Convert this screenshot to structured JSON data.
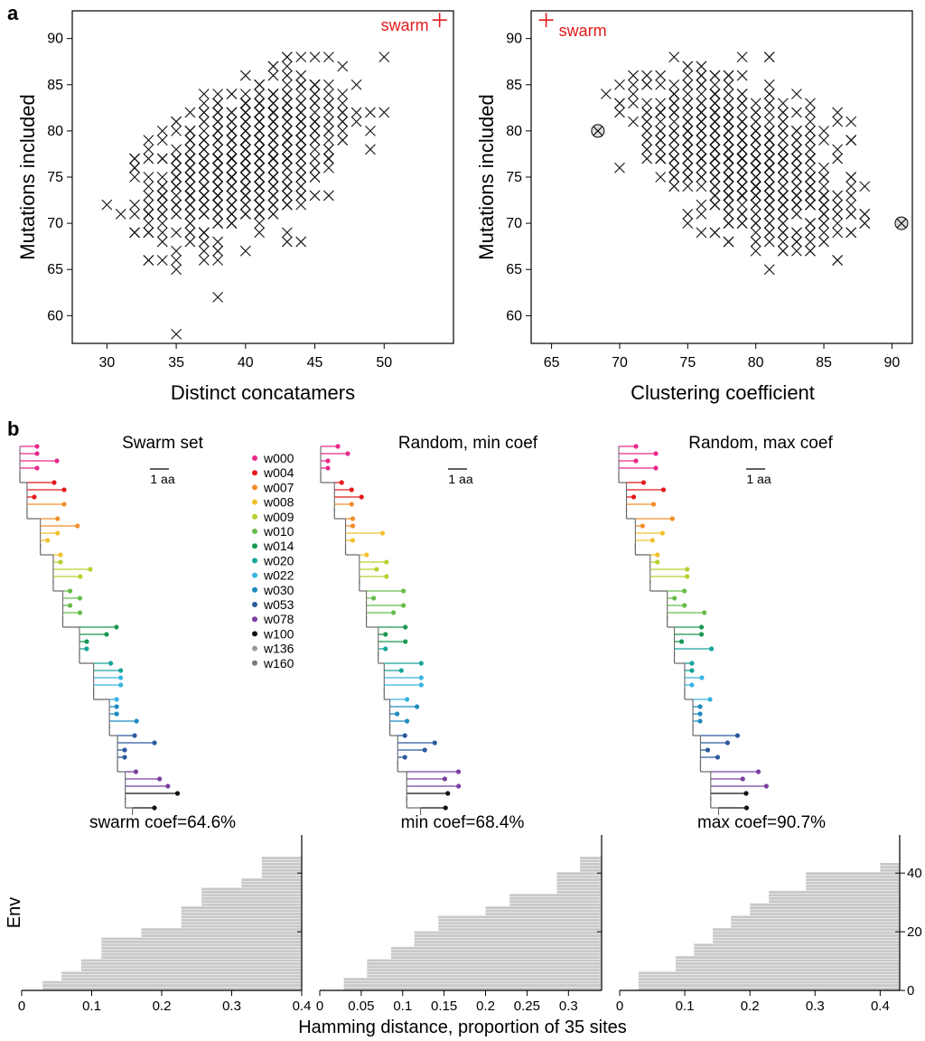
{
  "panel_labels": {
    "a": "a",
    "b": "b"
  },
  "colors": {
    "marker": "#111111",
    "highlight": "#e41a1c",
    "hist": "#c8c8c8",
    "axis": "#000000"
  },
  "chart_data": [
    {
      "id": "scatter-concatamers",
      "type": "scatter",
      "xlabel": "Distinct concatamers",
      "ylabel": "Mutations included",
      "xlim": [
        27.5,
        55
      ],
      "ylim": [
        57,
        93
      ],
      "xticks": [
        30,
        35,
        40,
        45,
        50
      ],
      "yticks": [
        60,
        65,
        70,
        75,
        80,
        85,
        90
      ],
      "highlight": {
        "label": "swarm",
        "x": 54,
        "y": 92
      },
      "cloud": {
        "center": [
          40,
          77
        ],
        "sd": [
          3.2,
          4.2
        ],
        "rho": 0.45,
        "n": 1000
      }
    },
    {
      "id": "scatter-clustering",
      "type": "scatter",
      "xlabel": "Clustering coefficient",
      "ylabel": "Mutations included",
      "xlim": [
        63.5,
        91.5
      ],
      "ylim": [
        57,
        93
      ],
      "xticks": [
        65,
        70,
        75,
        80,
        85,
        90
      ],
      "yticks": [
        60,
        65,
        70,
        75,
        80,
        85,
        90
      ],
      "highlight": {
        "label": "swarm",
        "x": 64.6,
        "y": 92
      },
      "circled": [
        {
          "x": 68.4,
          "y": 80
        },
        {
          "x": 90.7,
          "y": 70
        }
      ],
      "cloud": {
        "center": [
          79,
          77
        ],
        "sd": [
          3.4,
          4.2
        ],
        "rho": -0.5,
        "n": 1000
      }
    },
    {
      "id": "hist-swarm",
      "type": "bar",
      "title": "swarm coef=64.6%",
      "xlim": [
        0,
        0.4
      ],
      "xticks": [
        0,
        0.1,
        0.2,
        0.3,
        0.4
      ],
      "steps": [
        [
          0.03,
          0
        ],
        [
          0.057,
          3
        ],
        [
          0.085,
          6
        ],
        [
          0.114,
          10
        ],
        [
          0.171,
          17
        ],
        [
          0.228,
          20
        ],
        [
          0.257,
          27
        ],
        [
          0.314,
          33
        ],
        [
          0.343,
          36
        ],
        [
          0.4,
          43
        ]
      ]
    },
    {
      "id": "hist-min",
      "type": "bar",
      "title": "min coef=68.4%",
      "xlim": [
        0,
        0.34
      ],
      "xticks": [
        0,
        0.05,
        0.1,
        0.15,
        0.2,
        0.25,
        0.3
      ],
      "steps": [
        [
          0.029,
          0
        ],
        [
          0.057,
          4
        ],
        [
          0.086,
          10
        ],
        [
          0.114,
          14
        ],
        [
          0.143,
          19
        ],
        [
          0.2,
          24
        ],
        [
          0.229,
          27
        ],
        [
          0.286,
          31
        ],
        [
          0.314,
          38
        ],
        [
          0.343,
          43
        ]
      ]
    },
    {
      "id": "hist-max",
      "type": "bar",
      "title": "max coef=90.7%",
      "xlim": [
        0,
        0.43
      ],
      "xticks": [
        0,
        0.1,
        0.2,
        0.3,
        0.4
      ],
      "yticks": [
        0,
        20,
        40
      ],
      "ylim": [
        0,
        53
      ],
      "steps": [
        [
          0.029,
          0
        ],
        [
          0.086,
          6
        ],
        [
          0.114,
          11
        ],
        [
          0.143,
          15
        ],
        [
          0.171,
          20
        ],
        [
          0.2,
          24
        ],
        [
          0.229,
          28
        ],
        [
          0.286,
          32
        ],
        [
          0.4,
          38
        ],
        [
          0.429,
          41
        ]
      ]
    }
  ],
  "hist_axes": {
    "ylabel": "Env",
    "xlabel": "Hamming distance, proportion of 35 sites"
  },
  "trees": [
    {
      "id": "tree-swarm",
      "title": "Swarm set",
      "scale_label": "1 aa"
    },
    {
      "id": "tree-min",
      "title": "Random, min coef",
      "scale_label": "1 aa"
    },
    {
      "id": "tree-max",
      "title": "Random, max coef",
      "scale_label": "1 aa"
    }
  ],
  "legend": [
    {
      "label": "w000",
      "color": "#e7298a"
    },
    {
      "label": "w004",
      "color": "#e41a1c"
    },
    {
      "label": "w007",
      "color": "#f28e2b"
    },
    {
      "label": "w008",
      "color": "#f2c12e"
    },
    {
      "label": "w009",
      "color": "#b8cf2f"
    },
    {
      "label": "w010",
      "color": "#66bd4a"
    },
    {
      "label": "w014",
      "color": "#1a9850"
    },
    {
      "label": "w020",
      "color": "#17a59a"
    },
    {
      "label": "w022",
      "color": "#39b4e0"
    },
    {
      "label": "w030",
      "color": "#1f8ac0"
    },
    {
      "label": "w053",
      "color": "#2c5a9e"
    },
    {
      "label": "w078",
      "color": "#7b3fa0"
    },
    {
      "label": "w100",
      "color": "#111111"
    },
    {
      "label": "w136",
      "color": "#999999"
    },
    {
      "label": "w160",
      "color": "#777777"
    }
  ]
}
